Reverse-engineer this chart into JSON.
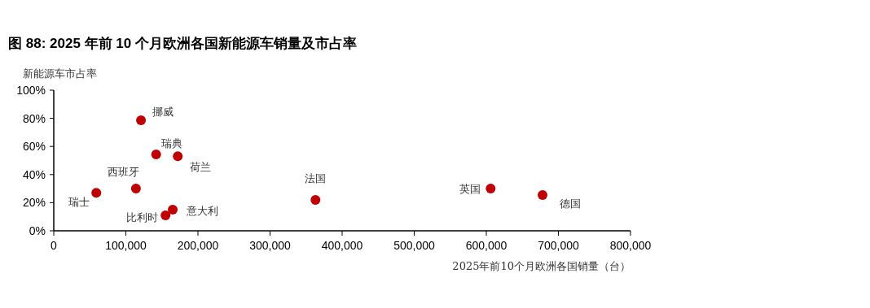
{
  "chart_data": {
    "type": "scatter",
    "title": "图 88: 2025 年前 10 个月欧洲各国新能源车销量及市占率",
    "xlabel": "2025年前10个月欧洲各国销量（台）",
    "ylabel": "新能源车市占率",
    "x": [
      121000,
      142000,
      172000,
      114000,
      59000,
      165000,
      155000,
      363000,
      606000,
      678000
    ],
    "values": [
      78.6,
      54.3,
      53,
      30,
      27,
      15,
      11,
      22,
      30,
      25.4
    ],
    "color": "#c00000",
    "marker": "circle",
    "xlim": [
      0,
      800000
    ],
    "xticks": [
      {
        "value": 0,
        "label": "0"
      },
      {
        "value": 100000,
        "label": "100,000"
      },
      {
        "value": 200000,
        "label": "200,000"
      },
      {
        "value": 300000,
        "label": "300,000"
      },
      {
        "value": 400000,
        "label": "400,000"
      },
      {
        "value": 500000,
        "label": "500,000"
      },
      {
        "value": 600000,
        "label": "600,000"
      },
      {
        "value": 700000,
        "label": "700,000"
      },
      {
        "value": 800000,
        "label": "800,000"
      }
    ],
    "ylim": [
      0,
      100
    ],
    "yticks": [
      {
        "value": 0,
        "label": "0%"
      },
      {
        "value": 20,
        "label": "20%"
      },
      {
        "value": 40,
        "label": "40%"
      },
      {
        "value": 60,
        "label": "60%"
      },
      {
        "value": 80,
        "label": "80%"
      },
      {
        "value": 100,
        "label": "100%"
      }
    ],
    "annotations": [
      {
        "text": "挪威",
        "x": 121000,
        "y": 78.6
      },
      {
        "text": "瑞典",
        "x": 142000,
        "y": 54.3
      },
      {
        "text": "荷兰",
        "x": 172000,
        "y": 53
      },
      {
        "text": "西班牙",
        "x": 114000,
        "y": 30
      },
      {
        "text": "瑞士",
        "x": 59000,
        "y": 27
      },
      {
        "text": "意大利",
        "x": 165000,
        "y": 15
      },
      {
        "text": "比利时",
        "x": 155000,
        "y": 11
      },
      {
        "text": "法国",
        "x": 363000,
        "y": 22
      },
      {
        "text": "英国",
        "x": 606000,
        "y": 30
      },
      {
        "text": "德国",
        "x": 678000,
        "y": 25.4
      }
    ]
  }
}
